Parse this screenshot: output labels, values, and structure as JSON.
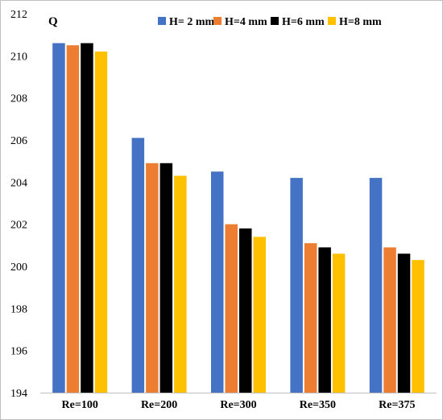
{
  "chart_data": {
    "type": "bar",
    "title": "",
    "xlabel": "",
    "ylabel": "Q",
    "ylim": [
      194,
      212
    ],
    "yticks": [
      194,
      196,
      198,
      200,
      202,
      204,
      206,
      208,
      210,
      212
    ],
    "categories": [
      "Re=100",
      "Re=200",
      "Re=300",
      "Re=350",
      "Re=375"
    ],
    "series": [
      {
        "name": "H= 2 mm",
        "color": "#4472C4",
        "values": [
          210.6,
          206.1,
          204.5,
          204.2,
          204.2
        ]
      },
      {
        "name": "H=4 mm",
        "color": "#ED7D31",
        "values": [
          210.5,
          204.9,
          202.0,
          201.1,
          200.9
        ]
      },
      {
        "name": "H=6 mm",
        "color": "#000000",
        "values": [
          210.6,
          204.9,
          201.8,
          200.9,
          200.6
        ]
      },
      {
        "name": "H=8 mm",
        "color": "#FFC000",
        "values": [
          210.2,
          204.3,
          201.4,
          200.6,
          200.3
        ]
      }
    ],
    "grid": false,
    "legend_position": "top-right"
  }
}
